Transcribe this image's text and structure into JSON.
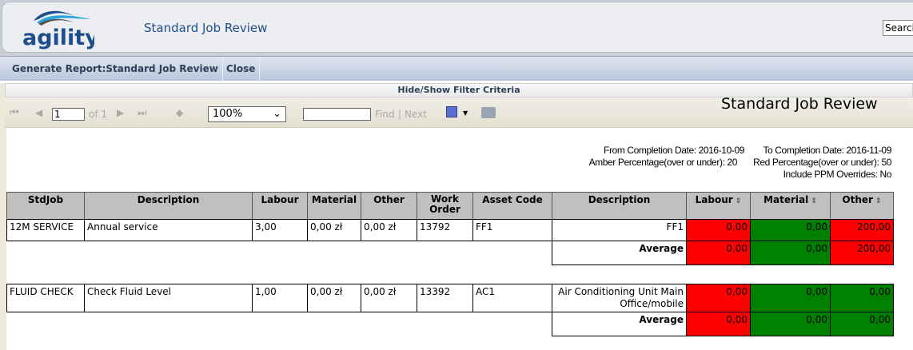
{
  "app": {
    "logo_text": "agility",
    "title": "Standard Job Review",
    "search_placeholder": "Search"
  },
  "menu": [
    {
      "label": "Generate Report:Standard Job Review"
    },
    {
      "label": "Close"
    }
  ],
  "filter_toggle": "Hide/Show Filter Criteria",
  "toolbar": {
    "page": "1",
    "of": "of 1",
    "zoom": "100%",
    "find": "Find",
    "sep": "|",
    "next": "Next"
  },
  "report": {
    "title": "Standard Job Review",
    "criteria": {
      "from": "From Completion Date: 2016-10-09",
      "to": "To Completion Date: 2016-11-09",
      "amber": "Amber Percentage(over or under): 20",
      "red": "Red Percentage(over or under): 50",
      "ppm": "Include PPM Overrides: No"
    },
    "headers": [
      "StdJob",
      "Description",
      "Labour",
      "Material",
      "Other",
      "Work Order",
      "Asset Code",
      "Description",
      "Labour",
      "Material",
      "Other"
    ],
    "groups": [
      {
        "stdjob": "12M SERVICE",
        "description": "Annual service",
        "labour": "3,00",
        "material": "0,00 zł",
        "other": "0,00 zł",
        "work_order": "13792",
        "asset_code": "FF1",
        "asset_description": "FF1",
        "var_labour": "0,00",
        "var_material": "0,00",
        "var_other": "200,00",
        "avg_label": "Average",
        "avg_labour": "0,00",
        "avg_material": "0,00",
        "avg_other": "200,00",
        "colors": [
          "#ff0000",
          "#008000",
          "#ff0000"
        ]
      },
      {
        "stdjob": "FLUID CHECK",
        "description": "Check Fluid Level",
        "labour": "1,00",
        "material": "0,00 zł",
        "other": "0,00 zł",
        "work_order": "13392",
        "asset_code": "AC1",
        "asset_description": "Air Conditioning Unit Main Office/mobile",
        "var_labour": "0,00",
        "var_material": "0,00",
        "var_other": "0,00",
        "avg_label": "Average",
        "avg_labour": "0,00",
        "avg_material": "0,00",
        "avg_other": "0,00",
        "colors": [
          "#ff0000",
          "#008000",
          "#008000"
        ]
      }
    ]
  }
}
